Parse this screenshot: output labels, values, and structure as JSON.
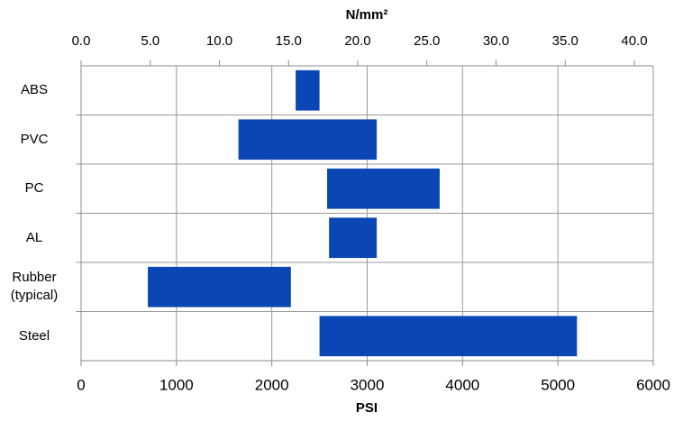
{
  "chart_data": {
    "type": "range-bar",
    "xlabel": "PSI",
    "x2label": "N/mm²",
    "categories": [
      "ABS",
      "PVC",
      "PC",
      "AL",
      "Rubber (typical)",
      "Steel"
    ],
    "low": [
      2250,
      1650,
      2580,
      2600,
      700,
      2500
    ],
    "high": [
      2500,
      3100,
      3760,
      3100,
      2200,
      5200
    ],
    "color": "#0a46b4",
    "xlim": [
      0,
      6000
    ],
    "xticks": [
      0,
      1000,
      2000,
      3000,
      4000,
      5000,
      6000
    ],
    "x2lim": [
      0,
      41.3685
    ],
    "x2ticks": [
      {
        "value": 0,
        "label": "0.0"
      },
      {
        "value": 5,
        "label": "5.0"
      },
      {
        "value": 10,
        "label": "10.0"
      },
      {
        "value": 15,
        "label": "15.0"
      },
      {
        "value": 20,
        "label": "20.0"
      },
      {
        "value": 25,
        "label": "25.0"
      },
      {
        "value": 30,
        "label": "30.0"
      },
      {
        "value": 35,
        "label": "35.0"
      },
      {
        "value": 40,
        "label": "40.0"
      }
    ],
    "grid": true
  }
}
